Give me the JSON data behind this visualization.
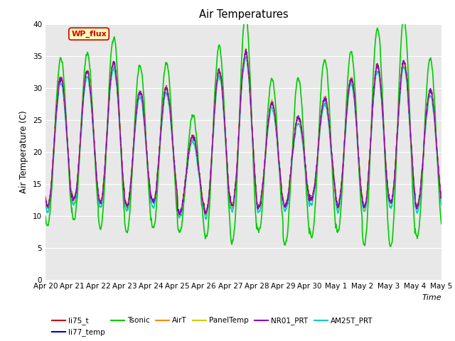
{
  "title": "Air Temperatures",
  "xlabel": "Time",
  "ylabel": "Air Temperature (C)",
  "ylim": [
    0,
    40
  ],
  "yticks": [
    0,
    5,
    10,
    15,
    20,
    25,
    30,
    35,
    40
  ],
  "axes_bg": "#e8e8e8",
  "fig_bg": "#ffffff",
  "series": {
    "li75_t": {
      "color": "#cc0000",
      "lw": 1.0,
      "zorder": 3
    },
    "li77_temp": {
      "color": "#0000cc",
      "lw": 1.0,
      "zorder": 3
    },
    "Tsonic": {
      "color": "#00cc00",
      "lw": 1.2,
      "zorder": 2
    },
    "AirT": {
      "color": "#ff8800",
      "lw": 1.0,
      "zorder": 3
    },
    "PanelTemp": {
      "color": "#cccc00",
      "lw": 1.0,
      "zorder": 3
    },
    "NR01_PRT": {
      "color": "#8800cc",
      "lw": 1.0,
      "zorder": 3
    },
    "AM25T_PRT": {
      "color": "#00cccc",
      "lw": 1.2,
      "zorder": 2
    }
  },
  "legend_labels": [
    "li75_t",
    "li77_temp",
    "Tsonic",
    "AirT",
    "PanelTemp",
    "NR01_PRT",
    "AM25T_PRT"
  ],
  "wp_flux_box": {
    "text": "WP_flux",
    "facecolor": "#ffffbb",
    "edgecolor": "#cc0000",
    "text_color": "#cc0000",
    "fontsize": 8
  },
  "xtick_labels": [
    "Apr 20",
    "Apr 21",
    "Apr 22",
    "Apr 23",
    "Apr 24",
    "Apr 25",
    "Apr 26",
    "Apr 27",
    "Apr 28",
    "Apr 29",
    "Apr 30",
    "May 1",
    "May 2",
    "May 3",
    "May 4",
    "May 5"
  ],
  "num_days": 15,
  "pts_per_day": 144,
  "day_params": {
    "mid": [
      21.5,
      22.5,
      23.0,
      20.5,
      21.0,
      16.5,
      21.5,
      23.5,
      19.5,
      18.5,
      20.5,
      21.5,
      22.5,
      23.0,
      20.5
    ],
    "amp": [
      10,
      10,
      11,
      9,
      9,
      6,
      11,
      12,
      8,
      7,
      8,
      10,
      11,
      11,
      9
    ],
    "tamp": [
      13,
      13,
      15,
      13,
      13,
      9,
      15,
      18,
      12,
      13,
      14,
      14,
      17,
      18,
      14
    ]
  }
}
